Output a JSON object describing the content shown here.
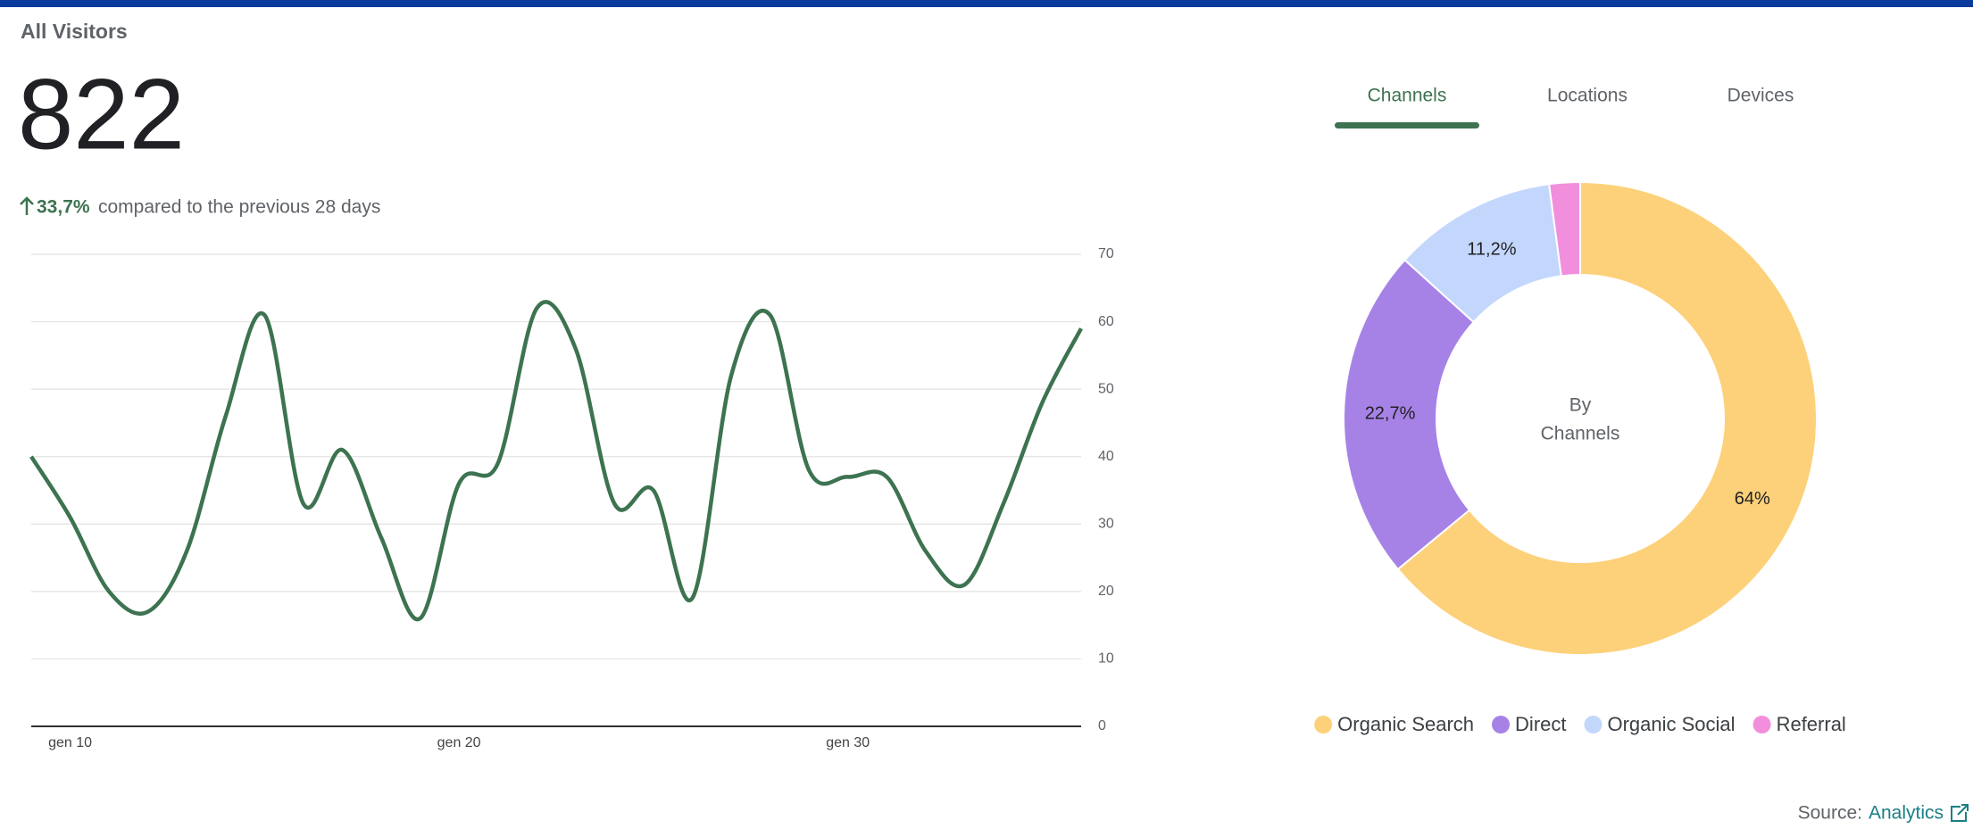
{
  "header": {
    "title": "All Visitors",
    "total": "822",
    "change": "33,7%",
    "comparison": "compared to the previous 28 days"
  },
  "tabs": {
    "items": [
      "Channels",
      "Locations",
      "Devices"
    ],
    "active": 0
  },
  "chart_data": [
    {
      "type": "line",
      "categories": [
        null,
        "gen 10",
        null,
        null,
        null,
        null,
        null,
        null,
        null,
        null,
        null,
        "gen 20",
        null,
        null,
        null,
        null,
        null,
        null,
        null,
        null,
        null,
        "gen 30",
        null,
        null,
        null,
        null,
        null,
        null
      ],
      "series": [
        {
          "name": "All Visitors",
          "color": "#3d7350",
          "values": [
            40,
            31,
            20,
            17,
            26,
            46,
            61,
            33,
            41,
            28,
            16,
            36,
            39,
            62,
            56,
            33,
            35,
            19,
            52,
            61,
            38,
            37,
            37,
            26,
            21,
            33,
            48,
            59
          ]
        }
      ],
      "ylim": [
        0,
        70
      ],
      "yticks": [
        0,
        10,
        20,
        30,
        40,
        50,
        60,
        70
      ],
      "grid": true,
      "yaxis_side": "right"
    },
    {
      "type": "donut",
      "center_label": [
        "By",
        "Channels"
      ],
      "categories": [
        "Organic Search",
        "Direct",
        "Organic Social",
        "Referral"
      ],
      "values": [
        64,
        22.7,
        11.2,
        2.1
      ],
      "value_labels": [
        "64%",
        "22,7%",
        "11,2%",
        null
      ],
      "colors": [
        "#fdd17a",
        "#a782e6",
        "#c3d7fd",
        "#f28fdd"
      ],
      "legend": "bottom"
    }
  ],
  "source": {
    "label": "Source:",
    "link": "Analytics"
  }
}
